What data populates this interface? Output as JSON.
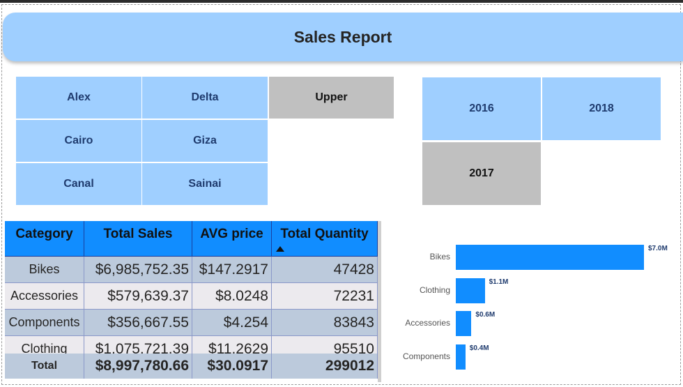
{
  "title": "Sales Report",
  "region_slicer": {
    "items": [
      {
        "label": "Alex",
        "selected": false
      },
      {
        "label": "Delta",
        "selected": false
      },
      {
        "label": "Upper",
        "selected": true
      },
      {
        "label": "Cairo",
        "selected": false
      },
      {
        "label": "Giza",
        "selected": false
      },
      {
        "label": "Canal",
        "selected": false
      },
      {
        "label": "Sainai",
        "selected": false
      }
    ]
  },
  "year_slicer": {
    "items": [
      {
        "label": "2016",
        "selected": false
      },
      {
        "label": "2018",
        "selected": false
      },
      {
        "label": "2017",
        "selected": true
      }
    ]
  },
  "table": {
    "headers": [
      "Category",
      "Total Sales",
      "AVG price",
      "Total Quantity"
    ],
    "sorted_column": "Total Quantity",
    "sort_direction": "ascending",
    "rows": [
      [
        "Bikes",
        "$6,985,752.35",
        "$147.2917",
        "47428"
      ],
      [
        "Accessories",
        "$579,639.37",
        "$8.0248",
        "72231"
      ],
      [
        "Components",
        "$356,667.55",
        "$4.254",
        "83843"
      ],
      [
        "Clothing",
        "$1,075,721.39",
        "$11.2629",
        "95510"
      ]
    ],
    "total": [
      "Total",
      "$8,997,780.66",
      "$30.0917",
      "299012"
    ]
  },
  "colors": {
    "accent": "#118dff",
    "tile": "#9fcfff",
    "tile_selected": "#c0c0c0",
    "row_alt": "#bccadc",
    "row": "#eceaee"
  },
  "chart_data": {
    "type": "bar",
    "orientation": "horizontal",
    "categories": [
      "Bikes",
      "Clothing",
      "Accessories",
      "Components"
    ],
    "values": [
      6985752.35,
      1075721.39,
      579639.37,
      356667.55
    ],
    "data_labels": [
      "$7.0M",
      "$1.1M",
      "$0.6M",
      "$0.4M"
    ],
    "xlim": [
      0,
      6985752.35
    ]
  }
}
